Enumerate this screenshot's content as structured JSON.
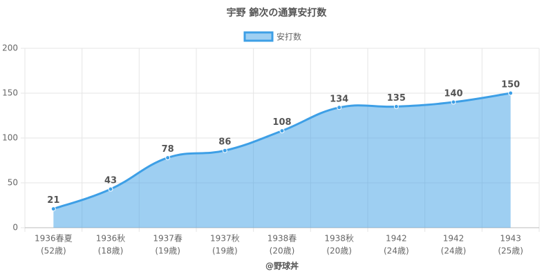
{
  "chart_data": {
    "type": "area",
    "title": "宇野 錦次の通算安打数",
    "categories": [
      [
        "1936春夏",
        "(52歳)"
      ],
      [
        "1936秋",
        "(18歳)"
      ],
      [
        "1937春",
        "(19歳)"
      ],
      [
        "1937秋",
        "(19歳)"
      ],
      [
        "1938春",
        "(20歳)"
      ],
      [
        "1938秋",
        "(20歳)"
      ],
      [
        "1942",
        "(24歳)"
      ],
      [
        "1942",
        "(24歳)"
      ],
      [
        "1943",
        "(25歳)"
      ]
    ],
    "series": [
      {
        "name": "安打数",
        "color": "#3d9fe6",
        "values": [
          21,
          43,
          78,
          86,
          108,
          134,
          135,
          140,
          150
        ]
      }
    ],
    "ylim": [
      0,
      200
    ],
    "yticks": [
      0,
      50,
      100,
      150,
      200
    ],
    "grid": true,
    "legend": "top",
    "xlabel": "@野球丼"
  }
}
